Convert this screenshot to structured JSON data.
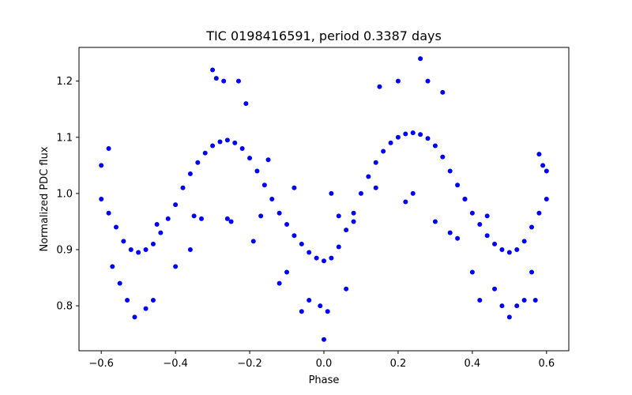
{
  "chart_data": {
    "type": "scatter",
    "title": "TIC 0198416591, period 0.3387 days",
    "xlabel": "Phase",
    "ylabel": "Normalized PDC flux",
    "xlim": [
      -0.66,
      0.66
    ],
    "ylim": [
      0.72,
      1.26
    ],
    "xticks": [
      -0.6,
      -0.4,
      -0.2,
      0.0,
      0.2,
      0.4,
      0.6
    ],
    "xtick_labels": [
      "−0.6",
      "−0.4",
      "−0.2",
      "0.0",
      "0.2",
      "0.4",
      "0.6"
    ],
    "yticks": [
      0.8,
      0.9,
      1.0,
      1.1,
      1.2
    ],
    "ytick_labels": [
      "0.8",
      "0.9",
      "1.0",
      "1.1",
      "1.2"
    ],
    "grid": false,
    "legend": "none",
    "marker_color": "#0000ff",
    "series": [
      {
        "points": [
          [
            -0.6,
            0.99
          ],
          [
            -0.58,
            0.965
          ],
          [
            -0.56,
            0.94
          ],
          [
            -0.54,
            0.915
          ],
          [
            -0.52,
            0.9
          ],
          [
            -0.5,
            0.895
          ],
          [
            -0.48,
            0.9
          ],
          [
            -0.46,
            0.91
          ],
          [
            -0.44,
            0.93
          ],
          [
            -0.42,
            0.955
          ],
          [
            -0.4,
            0.98
          ],
          [
            -0.38,
            1.01
          ],
          [
            -0.36,
            1.035
          ],
          [
            -0.34,
            1.055
          ],
          [
            -0.32,
            1.072
          ],
          [
            -0.3,
            1.085
          ],
          [
            -0.28,
            1.092
          ],
          [
            -0.26,
            1.095
          ],
          [
            -0.24,
            1.09
          ],
          [
            -0.22,
            1.08
          ],
          [
            -0.2,
            1.063
          ],
          [
            -0.18,
            1.04
          ],
          [
            -0.16,
            1.015
          ],
          [
            -0.14,
            0.99
          ],
          [
            -0.12,
            0.965
          ],
          [
            -0.1,
            0.945
          ],
          [
            -0.08,
            0.925
          ],
          [
            -0.06,
            0.91
          ],
          [
            -0.04,
            0.895
          ],
          [
            -0.02,
            0.885
          ],
          [
            0.0,
            0.88
          ],
          [
            0.02,
            0.885
          ],
          [
            0.04,
            0.905
          ],
          [
            0.06,
            0.935
          ],
          [
            0.08,
            0.965
          ],
          [
            0.1,
            1.0
          ],
          [
            0.12,
            1.03
          ],
          [
            0.14,
            1.055
          ],
          [
            0.16,
            1.075
          ],
          [
            0.18,
            1.09
          ],
          [
            0.2,
            1.1
          ],
          [
            0.22,
            1.106
          ],
          [
            0.24,
            1.108
          ],
          [
            0.26,
            1.105
          ],
          [
            0.28,
            1.098
          ],
          [
            0.3,
            1.085
          ],
          [
            0.32,
            1.065
          ],
          [
            0.34,
            1.04
          ],
          [
            0.36,
            1.015
          ],
          [
            0.38,
            0.99
          ],
          [
            0.4,
            0.965
          ],
          [
            0.42,
            0.945
          ],
          [
            0.44,
            0.925
          ],
          [
            0.46,
            0.91
          ],
          [
            0.48,
            0.9
          ],
          [
            0.5,
            0.895
          ],
          [
            0.52,
            0.9
          ],
          [
            0.54,
            0.915
          ],
          [
            0.56,
            0.94
          ],
          [
            0.58,
            0.965
          ],
          [
            0.6,
            0.99
          ],
          [
            -0.6,
            1.05
          ],
          [
            -0.58,
            1.08
          ],
          [
            -0.57,
            0.87
          ],
          [
            -0.55,
            0.84
          ],
          [
            -0.53,
            0.81
          ],
          [
            -0.51,
            0.78
          ],
          [
            -0.48,
            0.795
          ],
          [
            -0.46,
            0.81
          ],
          [
            -0.45,
            0.945
          ],
          [
            -0.4,
            0.87
          ],
          [
            -0.36,
            0.9
          ],
          [
            -0.35,
            0.96
          ],
          [
            -0.33,
            0.955
          ],
          [
            -0.3,
            1.22
          ],
          [
            -0.29,
            1.205
          ],
          [
            -0.27,
            1.2
          ],
          [
            -0.26,
            0.955
          ],
          [
            -0.25,
            0.95
          ],
          [
            -0.23,
            1.2
          ],
          [
            -0.21,
            1.16
          ],
          [
            -0.19,
            0.915
          ],
          [
            -0.17,
            0.96
          ],
          [
            -0.15,
            1.06
          ],
          [
            -0.12,
            0.84
          ],
          [
            -0.1,
            0.86
          ],
          [
            -0.08,
            1.01
          ],
          [
            -0.06,
            0.79
          ],
          [
            -0.04,
            0.81
          ],
          [
            -0.01,
            0.8
          ],
          [
            0.0,
            0.74
          ],
          [
            0.01,
            0.79
          ],
          [
            0.02,
            1.0
          ],
          [
            0.04,
            0.96
          ],
          [
            0.06,
            0.83
          ],
          [
            0.08,
            0.95
          ],
          [
            0.14,
            1.01
          ],
          [
            0.15,
            1.19
          ],
          [
            0.2,
            1.2
          ],
          [
            0.22,
            0.985
          ],
          [
            0.24,
            1.0
          ],
          [
            0.26,
            1.24
          ],
          [
            0.28,
            1.2
          ],
          [
            0.3,
            0.95
          ],
          [
            0.32,
            1.18
          ],
          [
            0.34,
            0.93
          ],
          [
            0.36,
            0.92
          ],
          [
            0.38,
            0.99
          ],
          [
            0.4,
            0.86
          ],
          [
            0.42,
            0.81
          ],
          [
            0.44,
            0.96
          ],
          [
            0.46,
            0.83
          ],
          [
            0.48,
            0.8
          ],
          [
            0.5,
            0.78
          ],
          [
            0.52,
            0.8
          ],
          [
            0.54,
            0.81
          ],
          [
            0.56,
            0.86
          ],
          [
            0.57,
            0.81
          ],
          [
            0.58,
            1.07
          ],
          [
            0.59,
            1.05
          ],
          [
            0.6,
            1.04
          ]
        ]
      }
    ]
  }
}
